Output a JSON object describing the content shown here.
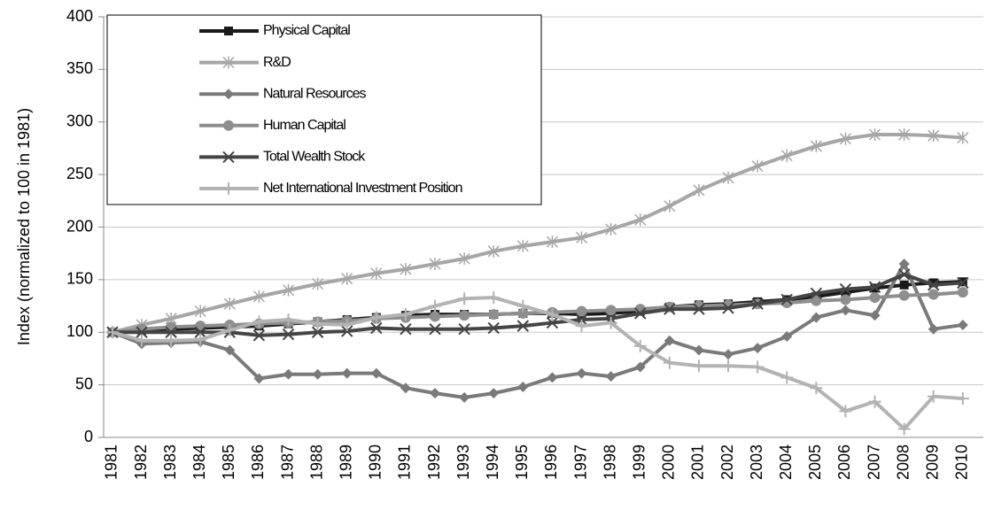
{
  "chart_data": {
    "type": "line",
    "y_label": "Index (normalized to 100 in 1981)",
    "categories": [
      "1981",
      "1982",
      "1983",
      "1984",
      "1985",
      "1986",
      "1987",
      "1988",
      "1989",
      "1990",
      "1991",
      "1992",
      "1993",
      "1994",
      "1995",
      "1996",
      "1997",
      "1998",
      "1999",
      "2000",
      "2001",
      "2002",
      "2003",
      "2004",
      "2005",
      "2006",
      "2007",
      "2008",
      "2009",
      "2010"
    ],
    "ylim": [
      0,
      400
    ],
    "yticks": [
      0,
      50,
      100,
      150,
      200,
      250,
      300,
      350,
      400
    ],
    "grid": true,
    "legend": "top-left",
    "series": [
      {
        "name": "Physical Capital",
        "color": "#1a1a1a",
        "marker": "square",
        "values": [
          100,
          102,
          103,
          104,
          105,
          106,
          108,
          110,
          112,
          114,
          116,
          117,
          117,
          117,
          118,
          118,
          117,
          118,
          120,
          124,
          126,
          127,
          129,
          131,
          134,
          138,
          142,
          145,
          147,
          148
        ]
      },
      {
        "name": "R&D",
        "color": "#a6a6a6",
        "marker": "asterisk",
        "values": [
          100,
          107,
          113,
          120,
          127,
          134,
          140,
          146,
          151,
          156,
          160,
          165,
          170,
          177,
          182,
          186,
          190,
          198,
          207,
          220,
          235,
          247,
          258,
          268,
          277,
          284,
          288,
          288,
          287,
          285
        ]
      },
      {
        "name": "Natural Resources",
        "color": "#7a7a7a",
        "marker": "diamond",
        "values": [
          100,
          89,
          90,
          91,
          83,
          56,
          60,
          60,
          61,
          61,
          47,
          42,
          38,
          42,
          48,
          57,
          61,
          58,
          67,
          92,
          83,
          79,
          85,
          96,
          114,
          121,
          116,
          165,
          103,
          107
        ]
      },
      {
        "name": "Human Capital",
        "color": "#8e8e8e",
        "marker": "circle",
        "values": [
          100,
          103,
          105,
          106,
          107,
          108,
          109,
          110,
          111,
          113,
          114,
          115,
          116,
          117,
          118,
          119,
          120,
          121,
          122,
          124,
          125,
          126,
          127,
          128,
          130,
          131,
          133,
          135,
          136,
          138
        ]
      },
      {
        "name": "Total Wealth Stock",
        "color": "#454545",
        "marker": "x",
        "values": [
          100,
          100,
          100,
          100,
          100,
          97,
          98,
          100,
          101,
          104,
          103,
          103,
          103,
          104,
          106,
          109,
          112,
          113,
          118,
          122,
          122,
          123,
          127,
          131,
          137,
          141,
          143,
          155,
          145,
          147
        ]
      },
      {
        "name": "Net International Investment Position",
        "color": "#b3b3b3",
        "marker": "plus",
        "values": [
          100,
          92,
          92,
          93,
          102,
          110,
          112,
          108,
          107,
          114,
          117,
          125,
          132,
          133,
          125,
          117,
          106,
          109,
          87,
          71,
          68,
          68,
          67,
          57,
          47,
          25,
          34,
          8,
          39,
          37
        ]
      }
    ]
  }
}
